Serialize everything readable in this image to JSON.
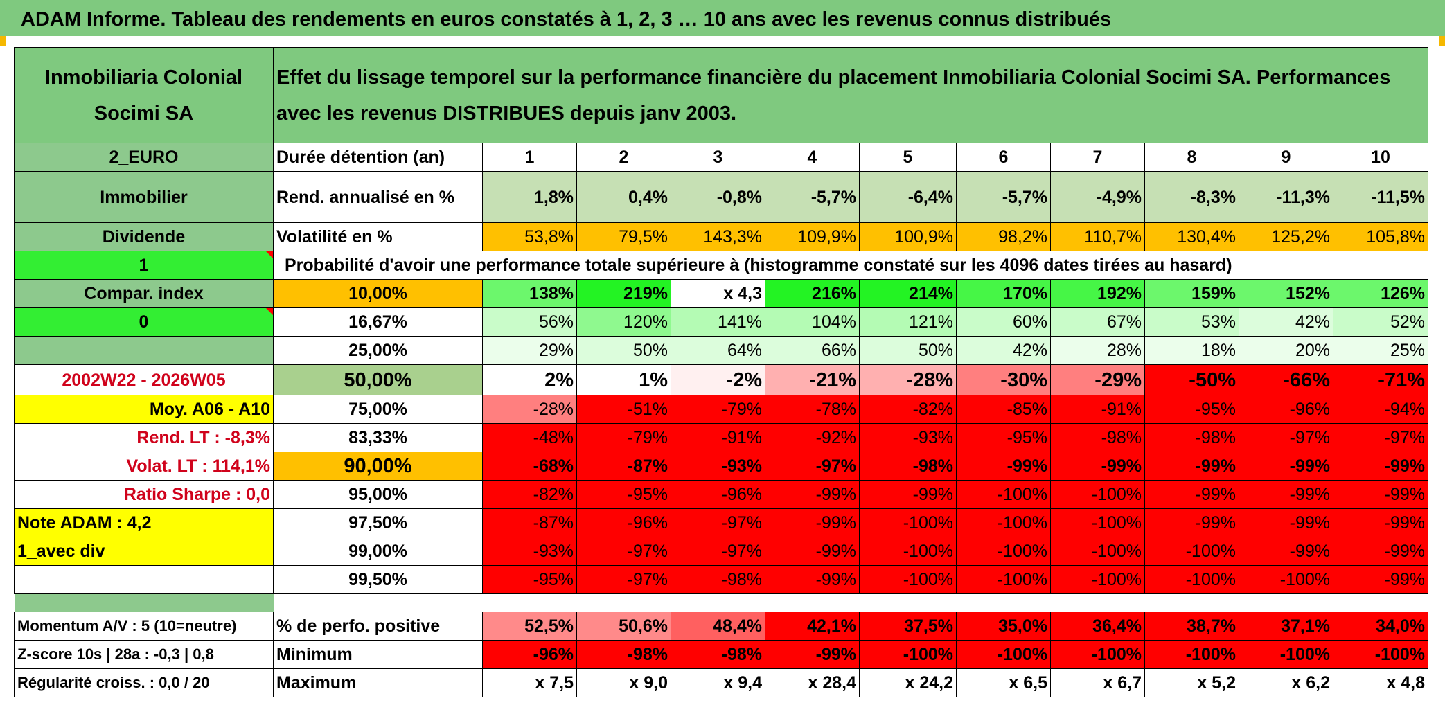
{
  "title": "ADAM Informe. Tableau des rendements en euros constatés à 1, 2, 3 … 10 ans avec les revenus connus distribués",
  "header": {
    "fund_name": "Inmobiliaria Colonial Socimi SA",
    "description": "Effet du lissage temporel sur la performance financière du placement Inmobiliaria Colonial Socimi SA. Performances avec les revenus DISTRIBUES depuis janv 2003."
  },
  "left_panel": {
    "currency": "2_EURO",
    "category": "Immobilier",
    "income": "Dividende",
    "flag1": "1",
    "compar_index": "Compar. index",
    "flag0": "0",
    "period": "2002W22 - 2026W05",
    "moy": "Moy. A06 - A10",
    "rend_lt": "Rend. LT :   -8,3%",
    "volat_lt": "Volat. LT :   114,1%",
    "sharpe": "Ratio Sharpe :    0,0",
    "note": "Note ADAM : 4,2",
    "div": "1_avec div",
    "momentum": "Momentum A/V : 5 (10=neutre)",
    "zscore": "Z-score 10s | 28a : -0,3 | 0,8",
    "regularite": "Régularité croiss. : 0,0 / 20"
  },
  "table": {
    "duree_label": "Durée détention (an)",
    "years": [
      "1",
      "2",
      "3",
      "4",
      "5",
      "6",
      "7",
      "8",
      "9",
      "10"
    ],
    "rend_label": "Rend. annualisé en %",
    "rend": [
      "1,8%",
      "0,4%",
      "-0,8%",
      "-5,7%",
      "-6,4%",
      "-5,7%",
      "-4,9%",
      "-8,3%",
      "-11,3%",
      "-11,5%"
    ],
    "vol_label": "Volatilité en %",
    "vol": [
      "53,8%",
      "79,5%",
      "143,3%",
      "109,9%",
      "100,9%",
      "98,2%",
      "110,7%",
      "130,4%",
      "125,2%",
      "105,8%"
    ],
    "proba_label": "Probabilité d'avoir une performance totale supérieure à (histogramme constaté sur les 4096 dates tirées au hasard)",
    "quantiles": [
      {
        "p": "10,00%",
        "v": [
          "138%",
          "219%",
          "x 4,3",
          "216%",
          "214%",
          "170%",
          "192%",
          "159%",
          "152%",
          "126%"
        ]
      },
      {
        "p": "16,67%",
        "v": [
          "56%",
          "120%",
          "141%",
          "104%",
          "121%",
          "60%",
          "67%",
          "53%",
          "42%",
          "52%"
        ]
      },
      {
        "p": "25,00%",
        "v": [
          "29%",
          "50%",
          "64%",
          "66%",
          "50%",
          "42%",
          "28%",
          "18%",
          "20%",
          "25%"
        ]
      },
      {
        "p": "50,00%",
        "v": [
          "2%",
          "1%",
          "-2%",
          "-21%",
          "-28%",
          "-30%",
          "-29%",
          "-50%",
          "-66%",
          "-71%"
        ]
      },
      {
        "p": "75,00%",
        "v": [
          "-28%",
          "-51%",
          "-79%",
          "-78%",
          "-82%",
          "-85%",
          "-91%",
          "-95%",
          "-96%",
          "-94%"
        ]
      },
      {
        "p": "83,33%",
        "v": [
          "-48%",
          "-79%",
          "-91%",
          "-92%",
          "-93%",
          "-95%",
          "-98%",
          "-98%",
          "-97%",
          "-97%"
        ]
      },
      {
        "p": "90,00%",
        "v": [
          "-68%",
          "-87%",
          "-93%",
          "-97%",
          "-98%",
          "-99%",
          "-99%",
          "-99%",
          "-99%",
          "-99%"
        ]
      },
      {
        "p": "95,00%",
        "v": [
          "-82%",
          "-95%",
          "-96%",
          "-99%",
          "-99%",
          "-100%",
          "-100%",
          "-99%",
          "-99%",
          "-99%"
        ]
      },
      {
        "p": "97,50%",
        "v": [
          "-87%",
          "-96%",
          "-97%",
          "-99%",
          "-100%",
          "-100%",
          "-100%",
          "-99%",
          "-99%",
          "-99%"
        ]
      },
      {
        "p": "99,00%",
        "v": [
          "-93%",
          "-97%",
          "-97%",
          "-99%",
          "-100%",
          "-100%",
          "-100%",
          "-100%",
          "-99%",
          "-99%"
        ]
      },
      {
        "p": "99,50%",
        "v": [
          "-95%",
          "-97%",
          "-98%",
          "-99%",
          "-100%",
          "-100%",
          "-100%",
          "-100%",
          "-100%",
          "-99%"
        ]
      }
    ],
    "pos_label": "% de perfo. positive",
    "pos": [
      "52,5%",
      "50,6%",
      "48,4%",
      "42,1%",
      "37,5%",
      "35,0%",
      "36,4%",
      "38,7%",
      "37,1%",
      "34,0%"
    ],
    "min_label": "Minimum",
    "min": [
      "-96%",
      "-98%",
      "-98%",
      "-99%",
      "-100%",
      "-100%",
      "-100%",
      "-100%",
      "-100%",
      "-100%"
    ],
    "max_label": "Maximum",
    "max": [
      "x 7,5",
      "x 9,0",
      "x 9,4",
      "x 28,4",
      "x 24,2",
      "x 6,5",
      "x 6,7",
      "x 5,2",
      "x 6,2",
      "x 4,8"
    ]
  }
}
